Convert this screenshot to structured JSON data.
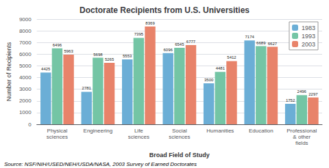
{
  "chart_data": {
    "type": "bar",
    "title": "Doctorate Recipients from U.S. Universities",
    "xlabel": "Broad Field of Study",
    "ylabel": "Number of Recipients",
    "source": "Source: NSF/NIH/USED/NEH/USDA/NASA, 2003 Survey of Earned Doctorates",
    "categories": [
      "Physical\nsciences",
      "Engineering",
      "Life\nsciences",
      "Social\nsciences",
      "Humanities",
      "Education",
      "Professional\n& other\nfields"
    ],
    "series": [
      {
        "name": "1983",
        "color": "#6baed6",
        "values": [
          4425,
          2781,
          5553,
          6096,
          3500,
          7174,
          1752
        ]
      },
      {
        "name": "1993",
        "color": "#74c5a5",
        "values": [
          6496,
          5698,
          7395,
          6545,
          4481,
          6689,
          2496
        ]
      },
      {
        "name": "2003",
        "color": "#e8836a",
        "values": [
          5963,
          5265,
          8369,
          6777,
          5412,
          6627,
          2297
        ]
      }
    ],
    "ylim": [
      0,
      9000
    ],
    "yticks": [
      0,
      1000,
      2000,
      3000,
      4000,
      5000,
      6000,
      7000,
      8000,
      9000
    ],
    "grid": true,
    "legend": "upper right",
    "data_labels": true
  }
}
